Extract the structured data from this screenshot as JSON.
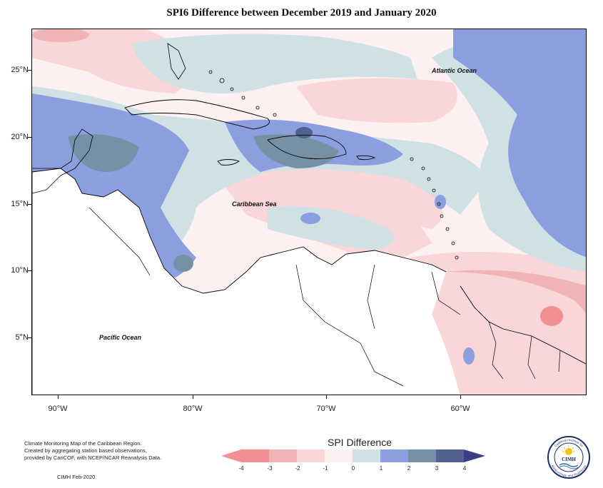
{
  "title": "SPI6 Difference between December 2019 and January 2020",
  "latitude_labels": [
    "25°N",
    "20°N",
    "15°N",
    "10°N",
    "5°N"
  ],
  "longitude_labels": [
    "90°W",
    "80°W",
    "70°W",
    "60°W"
  ],
  "place_labels": {
    "atlantic": "Atlantic Ocean",
    "caribbean": "Caribbean Sea",
    "pacific": "Pacific Ocean"
  },
  "legend": {
    "title": "SPI Difference",
    "ticks": [
      "-4",
      "-3",
      "-2",
      "-1",
      "0",
      "1",
      "2",
      "3",
      "4"
    ],
    "colors": [
      "#f18f93",
      "#efb4b6",
      "#f9d6d8",
      "#fdf0f0",
      "#cfe1e4",
      "#8b9ede",
      "#7691a6",
      "#52618e",
      "#3a3d84"
    ]
  },
  "notes": {
    "line1": "Climate Monitoring Map of the Caribbean Region.",
    "line2": "Created by aggregating station based observations,",
    "line3": "provided by CariCOF, with NCEP/NCAR Reanalysis Data.",
    "credit": "CIMH Feb-2020"
  },
  "logo": {
    "text": "CIMH",
    "ring_top": "Caribbean Institute for",
    "ring_bottom": "Meteorology and Hydrology"
  },
  "palette": {
    "neutral": "#fdf0f0",
    "light_pink": "#f9d6d8",
    "pink": "#efb4b6",
    "red": "#f18f93",
    "light_blue": "#cfe1e4",
    "blue": "#8b9ede",
    "slate": "#7691a6"
  }
}
